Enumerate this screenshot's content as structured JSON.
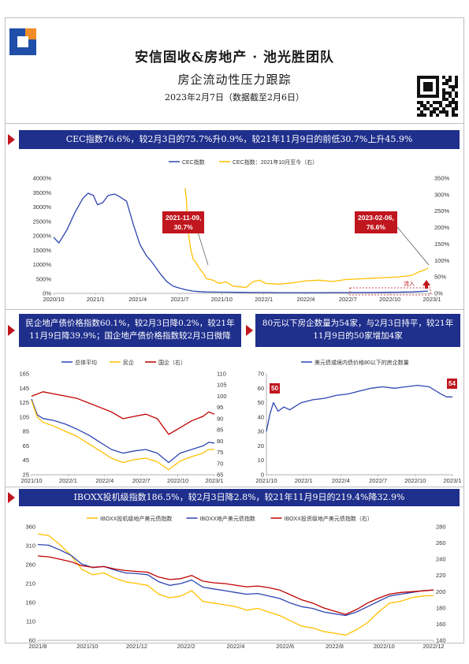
{
  "header": {
    "title": "安信固收&房地产 · 池光胜团队",
    "subtitle": "房企流动性压力跟踪",
    "date": "2023年2月7日（数据截至2月6日）"
  },
  "sections": [
    {
      "id": "cec",
      "banner": "CEC指数76.6%，较2月3日的75.7%升0.9%，较21年11月9日的前低30.7%上升45.9%"
    },
    {
      "id": "price",
      "banner": "民企地产债价格指数60.1%，较2月3日降0.2%，较21年11月9日降39.9%；国企地产债价格指数较2月3日微降"
    },
    {
      "id": "count",
      "banner": "80元以下房企数量为54家，与2月3日持平，较21年11月9日的50家增加4家"
    },
    {
      "id": "iboxx",
      "banner": "IBOXX投机级指数186.5%，较2月3日降2.8%，较21年11月9日的219.4%降32.9%"
    }
  ],
  "callouts": {
    "cec_low": "2021-11-09,\n30.7%",
    "cec_now": "2023-02-06,\n76.6%",
    "cec_inflow": "流入",
    "count_start": "50",
    "count_end": "54"
  },
  "colors": {
    "navy": "#1f2f8c",
    "red": "#c0161e",
    "blue": "#2e45b0",
    "yellow": "#ffc000",
    "darkred": "#c00000"
  },
  "chart_data": [
    {
      "type": "line",
      "legend": [
        "CEC指数",
        "CEC指数：2021年10月至今（右）"
      ],
      "x_ticks": [
        "2020/10",
        "2021/1",
        "2021/4",
        "2021/7",
        "2021/10",
        "2022/1",
        "2022/4",
        "2022/7",
        "2022/10",
        "2023/1"
      ],
      "y_left_ticks": [
        "0%",
        "500%",
        "1000%",
        "1500%",
        "2000%",
        "2500%",
        "3000%",
        "3500%",
        "4000%"
      ],
      "y_right_ticks": [
        "0%",
        "50%",
        "100%",
        "150%",
        "200%",
        "250%",
        "300%",
        "350%"
      ],
      "ylim_left": [
        0,
        4000
      ],
      "ylim_right": [
        0,
        350
      ],
      "series": [
        {
          "name": "CEC指数",
          "axis": "left",
          "x": [
            0,
            0.4,
            1,
            1.6,
            2.2,
            2.6,
            3,
            3.3,
            3.7,
            4.1,
            4.6,
            5,
            5.5,
            6,
            6.5,
            7,
            7.3,
            7.7,
            8,
            8.5,
            9,
            9.5,
            10,
            10.5,
            11,
            11.5,
            12,
            13,
            14,
            15,
            16,
            17,
            18,
            19,
            20,
            21,
            22,
            23,
            24,
            25,
            26,
            27,
            28.2
          ],
          "y": [
            1950,
            1750,
            2200,
            2800,
            3300,
            3480,
            3400,
            3080,
            3150,
            3400,
            3450,
            3350,
            3200,
            2400,
            1700,
            1300,
            1150,
            900,
            700,
            420,
            250,
            180,
            120,
            80,
            60,
            50,
            45,
            40,
            35,
            30,
            30,
            25,
            25,
            25,
            25,
            28,
            28,
            30,
            30,
            35,
            40,
            50,
            80
          ]
        },
        {
          "name": "CEC指数：2021年10月至今（右）",
          "axis": "right",
          "x": [
            9.9,
            10.0,
            10.1,
            10.2,
            10.3,
            10.5,
            10.7,
            11,
            11.3,
            11.5,
            12,
            12.5,
            13,
            13.5,
            14,
            14.5,
            15,
            15.5,
            16,
            17,
            18,
            19,
            20,
            21,
            22,
            23,
            24,
            25,
            26,
            27,
            27.5,
            28,
            28.2
          ],
          "y": [
            320,
            290,
            200,
            170,
            140,
            105,
            95,
            75,
            60,
            45,
            40,
            30,
            35,
            22,
            20,
            18,
            35,
            40,
            30,
            28,
            32,
            38,
            40,
            36,
            42,
            44,
            46,
            48,
            50,
            55,
            65,
            72,
            76.6
          ]
        }
      ]
    },
    {
      "type": "line",
      "legend": [
        "总体平均",
        "民企",
        "国企（右）"
      ],
      "x_ticks": [
        "2021/10",
        "2022/1",
        "2022/4",
        "2022/7",
        "2022/10",
        "2023/1"
      ],
      "y_left_ticks": [
        "25",
        "45",
        "65",
        "85",
        "105",
        "125",
        "145",
        "165"
      ],
      "y_right_ticks": [
        "65",
        "70",
        "75",
        "80",
        "85",
        "90",
        "95",
        "100",
        "105",
        "110"
      ],
      "ylim_left": [
        25,
        165
      ],
      "ylim_right": [
        65,
        110
      ],
      "series": [
        {
          "name": "总体平均",
          "axis": "left",
          "x": [
            0,
            0.5,
            1,
            2,
            3,
            4,
            5,
            6,
            7,
            8,
            9,
            10,
            11,
            12,
            13,
            14,
            15,
            15.5,
            16
          ],
          "y": [
            130,
            108,
            103,
            100,
            95,
            88,
            80,
            70,
            60,
            55,
            58,
            60,
            55,
            42,
            55,
            60,
            65,
            70,
            69
          ]
        },
        {
          "name": "民企",
          "axis": "left",
          "x": [
            0,
            0.5,
            1,
            2,
            3,
            4,
            5,
            6,
            7,
            8,
            9,
            10,
            11,
            12,
            13,
            14,
            15,
            15.5,
            16
          ],
          "y": [
            128,
            105,
            98,
            92,
            85,
            78,
            68,
            58,
            48,
            42,
            46,
            48,
            43,
            32,
            44,
            50,
            55,
            60,
            60.1
          ]
        },
        {
          "name": "国企（右）",
          "axis": "right",
          "x": [
            0,
            0.5,
            1,
            2,
            3,
            4,
            5,
            6,
            7,
            8,
            9,
            10,
            11,
            12,
            13,
            14,
            15,
            15.5,
            16
          ],
          "y": [
            100,
            101,
            102,
            101,
            100,
            99,
            97,
            95,
            93,
            90,
            91,
            92,
            90,
            83,
            86,
            89,
            91,
            93,
            92
          ]
        }
      ]
    },
    {
      "type": "line",
      "legend": [
        "美元债或境内债价格80以下的房企数量"
      ],
      "x_ticks": [
        "2021/10",
        "2022/1",
        "2022/4",
        "2022/7",
        "2022/10",
        "2023/1"
      ],
      "y_ticks": [
        "0",
        "10",
        "20",
        "30",
        "40",
        "50",
        "60",
        "70"
      ],
      "ylim": [
        0,
        70
      ],
      "series": [
        {
          "name": "美元债或境内债价格80以下的房企数量",
          "x": [
            0,
            0.3,
            0.6,
            1,
            1.5,
            2,
            3,
            4,
            5,
            6,
            7,
            8,
            9,
            10,
            11,
            12,
            13,
            14,
            15,
            15.5,
            16
          ],
          "y": [
            30,
            42,
            50,
            44,
            47,
            45,
            50,
            52,
            53,
            55,
            56,
            58,
            60,
            61,
            60,
            61,
            62,
            61,
            56,
            54,
            54
          ]
        }
      ]
    },
    {
      "type": "line",
      "legend": [
        "IBOXX投机级地产美元债指数",
        "IBOXX地产美元债指数",
        "IBOXX投资级地产美元债指数（右）"
      ],
      "x_ticks": [
        "2021/8",
        "2021/10",
        "2021/12",
        "2022/2",
        "2022/4",
        "2022/6",
        "2022/8",
        "2022/10",
        "2022/12"
      ],
      "y_left_ticks": [
        "60",
        "110",
        "160",
        "210",
        "260",
        "310",
        "360"
      ],
      "y_right_ticks": [
        "140",
        "160",
        "180",
        "200",
        "220",
        "240",
        "260",
        "280"
      ],
      "ylim_left": [
        60,
        380
      ],
      "ylim_right": [
        140,
        280
      ],
      "series": [
        {
          "name": "IBOXX投机级地产美元债指数",
          "axis": "left",
          "x": [
            0,
            1,
            2,
            3,
            4,
            5,
            6,
            7,
            8,
            9,
            10,
            11,
            12,
            13,
            14,
            15,
            16,
            17,
            18,
            19,
            20,
            21,
            22,
            23,
            24,
            25,
            26,
            27,
            28,
            29,
            30,
            31,
            32,
            33,
            34,
            35,
            36
          ],
          "y": [
            360,
            355,
            330,
            300,
            260,
            245,
            250,
            235,
            225,
            220,
            215,
            190,
            180,
            185,
            200,
            170,
            165,
            160,
            155,
            145,
            150,
            140,
            130,
            115,
            100,
            95,
            85,
            80,
            75,
            90,
            110,
            140,
            165,
            170,
            180,
            185,
            186.5
          ]
        },
        {
          "name": "IBOXX地产美元债指数",
          "axis": "left",
          "x": [
            0,
            1,
            2,
            3,
            4,
            5,
            6,
            7,
            8,
            9,
            10,
            11,
            12,
            13,
            14,
            15,
            16,
            17,
            18,
            19,
            20,
            21,
            22,
            23,
            24,
            25,
            26,
            27,
            28,
            29,
            30,
            31,
            32,
            33,
            34,
            35,
            36
          ],
          "y": [
            330,
            328,
            315,
            300,
            275,
            265,
            268,
            258,
            250,
            248,
            245,
            225,
            215,
            220,
            230,
            210,
            205,
            200,
            195,
            190,
            192,
            185,
            178,
            165,
            155,
            150,
            140,
            135,
            130,
            140,
            155,
            170,
            185,
            190,
            195,
            200,
            202
          ]
        },
        {
          "name": "IBOXX投资级地产美元债指数（右）",
          "axis": "right",
          "x": [
            0,
            1,
            2,
            3,
            4,
            5,
            6,
            7,
            8,
            9,
            10,
            11,
            12,
            13,
            14,
            15,
            16,
            17,
            18,
            19,
            20,
            21,
            22,
            23,
            24,
            25,
            26,
            27,
            28,
            29,
            30,
            31,
            32,
            33,
            34,
            35,
            36
          ],
          "y": [
            244,
            243,
            240,
            237,
            232,
            230,
            231,
            228,
            226,
            225,
            224,
            218,
            215,
            216,
            220,
            213,
            211,
            210,
            208,
            206,
            207,
            205,
            202,
            196,
            190,
            186,
            180,
            176,
            172,
            178,
            186,
            192,
            197,
            199,
            200,
            201,
            202
          ]
        }
      ]
    }
  ]
}
